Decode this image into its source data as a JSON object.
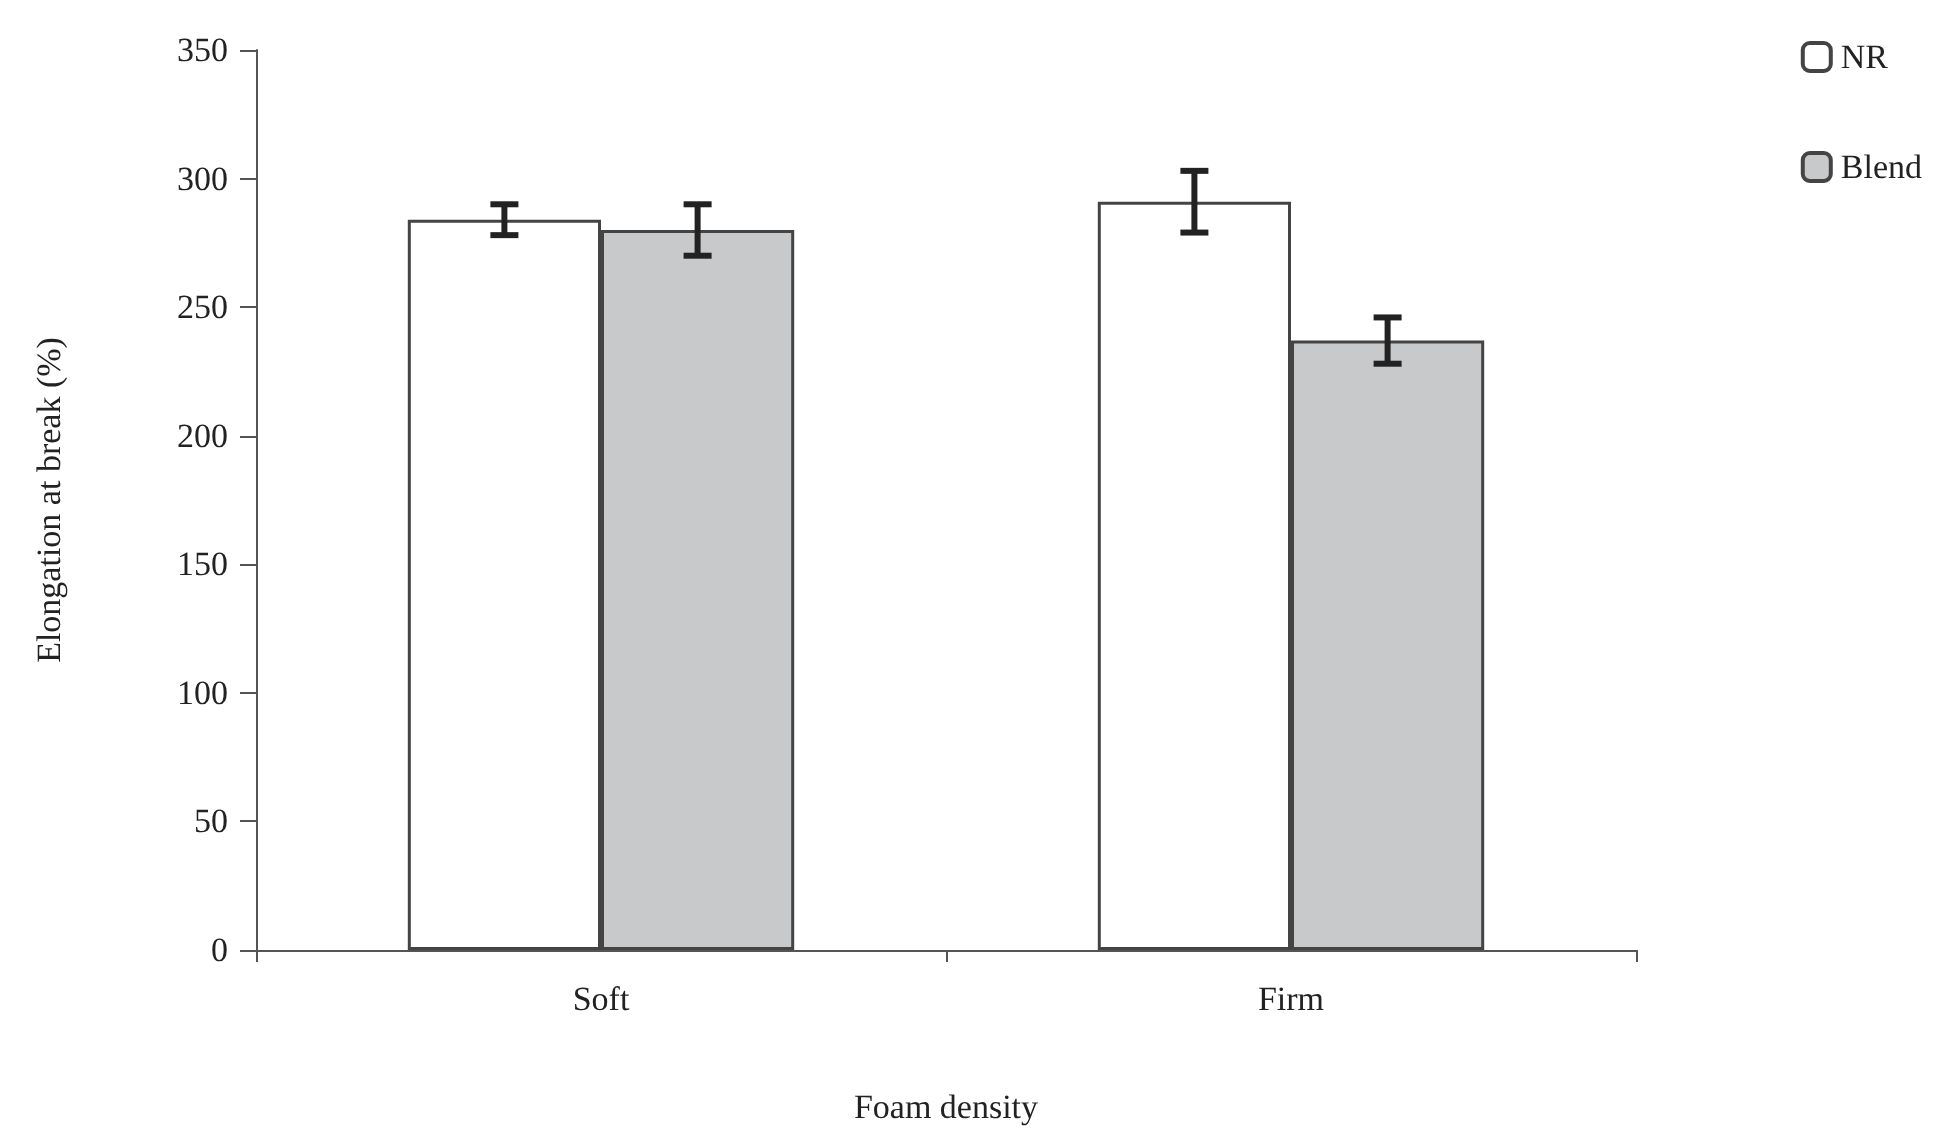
{
  "chart_data": {
    "type": "bar",
    "xlabel": "Foam density",
    "ylabel": "Elongation at break (%)",
    "categories": [
      "Soft",
      "Firm"
    ],
    "series": [
      {
        "name": "NR",
        "color": "#ffffff",
        "values": [
          284,
          291
        ],
        "errors": [
          6,
          12
        ]
      },
      {
        "name": "Blend",
        "color": "#c8c9cb",
        "values": [
          280,
          237
        ],
        "errors": [
          10,
          9
        ]
      }
    ],
    "ylim": [
      0,
      350
    ],
    "yticks": [
      0,
      50,
      100,
      150,
      200,
      250,
      300,
      350
    ],
    "grid": false,
    "legend": "top right"
  }
}
